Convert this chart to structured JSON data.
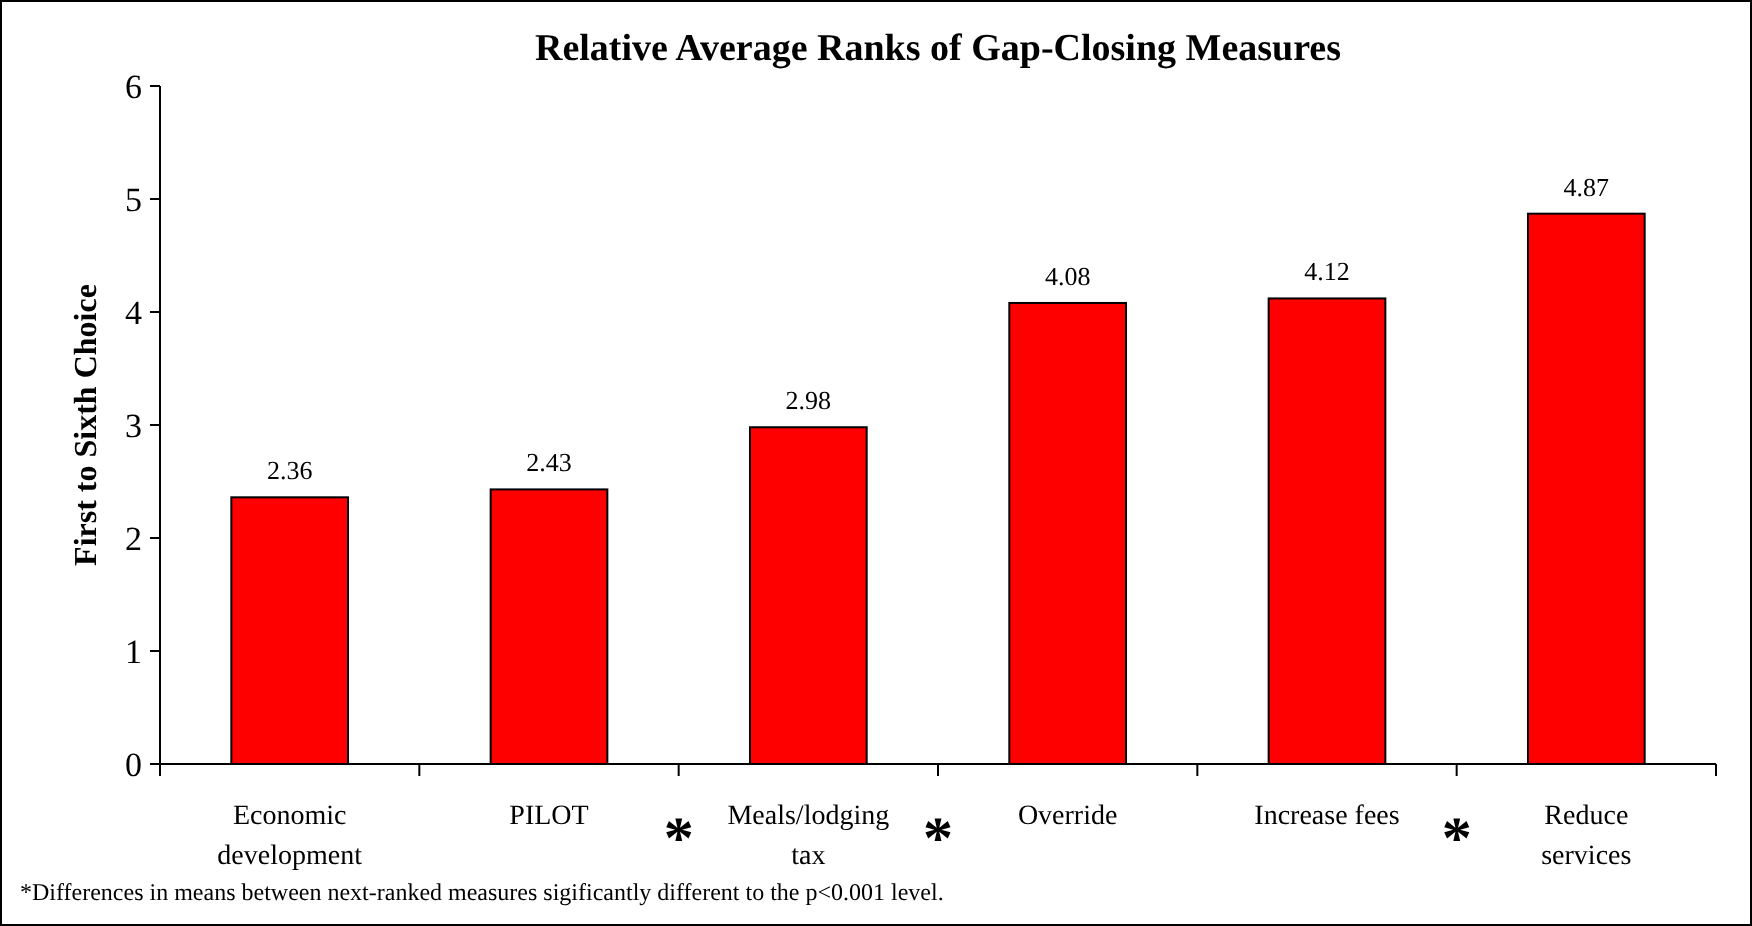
{
  "chart_data": {
    "type": "bar",
    "title": "Relative Average Ranks of Gap-Closing Measures",
    "ylabel": "First to Sixth Choice",
    "categories": [
      "Economic development",
      "PILOT",
      "Meals/lodging tax",
      "Override",
      "Increase fees",
      "Reduce services"
    ],
    "values": [
      2.36,
      2.43,
      2.98,
      4.08,
      4.12,
      4.87
    ],
    "color": "#ff0000",
    "ylim": [
      0,
      6
    ],
    "yticks": [
      0,
      1,
      2,
      3,
      4,
      5,
      6
    ],
    "grid": false,
    "data_labels": true,
    "annotations": [
      "*",
      "*",
      "*",
      "*Differences in means between next-ranked measures sigificantly different to the p<0.001 level."
    ]
  }
}
